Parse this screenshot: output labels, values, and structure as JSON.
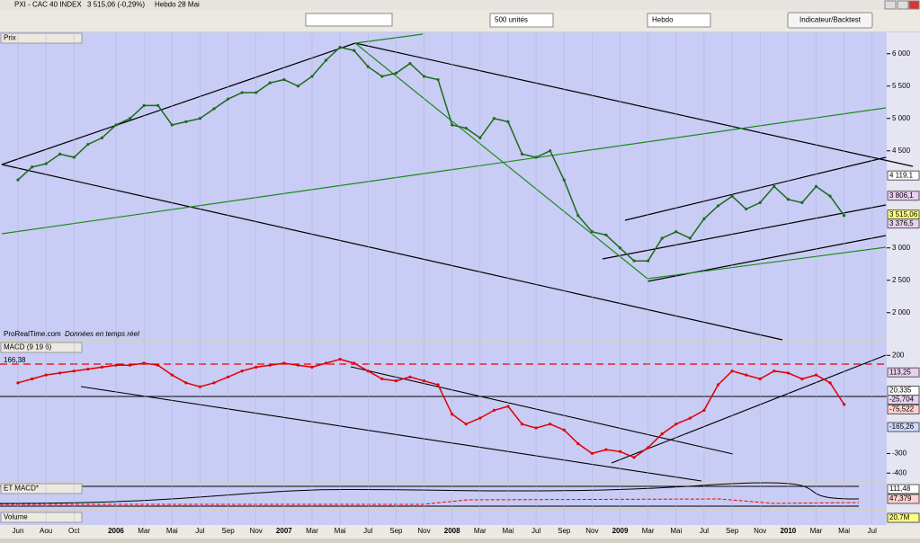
{
  "window": {
    "title": "PXI - CAC 40 INDEX",
    "quote": "3 515,06 (-0,29%)",
    "period": "Hebdo 28 Mai"
  },
  "toolbar": {
    "units": "500 unités",
    "timeframe": "Hebdo",
    "button": "Indicateur/Backtest"
  },
  "time_labels": [
    "Jun",
    "Aou",
    "Oct",
    "2006",
    "Mar",
    "Mai",
    "Jul",
    "Sep",
    "Nov",
    "2007",
    "Mar",
    "Mai",
    "Jul",
    "Sep",
    "Nov",
    "2008",
    "Mar",
    "Mai",
    "Jul",
    "Sep",
    "Nov",
    "2009",
    "Mar",
    "Mai",
    "Jul",
    "Sep",
    "Nov",
    "2010",
    "Mar",
    "Mai",
    "Jul"
  ],
  "price_panel": {
    "header": "Prix",
    "source": "ProRealTime.com",
    "note": "Données en temps réel",
    "color": "#1a6b1a",
    "ylim": [
      1580,
      6330
    ],
    "yticks": [
      {
        "value": 2000,
        "label": "2 000"
      },
      {
        "value": 2500,
        "label": "2 500"
      },
      {
        "value": 3000,
        "label": "3 000"
      },
      {
        "value": 4500,
        "label": "4 500"
      },
      {
        "value": 5000,
        "label": "5 000"
      },
      {
        "value": 5500,
        "label": "5 500"
      },
      {
        "value": 6000,
        "label": "6 000"
      }
    ],
    "markers": [
      {
        "value": 4119.1,
        "label": "4 119,1",
        "color": "#ffffff"
      },
      {
        "value": 3806.1,
        "label": "3 806,1",
        "color": "#e8d0f0"
      },
      {
        "value": 3515.06,
        "label": "3 515,06",
        "color": "#ffff80"
      },
      {
        "value": 3376.5,
        "label": "3 376,5",
        "color": "#e8d0f0"
      }
    ],
    "values": [
      4050,
      4250,
      4300,
      4450,
      4400,
      4600,
      4700,
      4900,
      5000,
      5200,
      5200,
      4900,
      4950,
      5000,
      5150,
      5300,
      5400,
      5400,
      5550,
      5600,
      5500,
      5650,
      5900,
      6100,
      6050,
      5800,
      5650,
      5700,
      5850,
      5650,
      5600,
      4900,
      4850,
      4700,
      5000,
      4950,
      4450,
      4400,
      4500,
      4050,
      3500,
      3250,
      3200,
      3000,
      2800,
      2800,
      3150,
      3250,
      3150,
      3450,
      3650,
      3800,
      3600,
      3700,
      3950,
      3750,
      3700,
      3950,
      3800,
      3500
    ]
  },
  "macd_panel": {
    "header": "MACD (9 19 6)",
    "level_label": "166,38",
    "color": "#e00000",
    "ylim": [
      -440,
      270
    ],
    "yticks": [
      200,
      -300,
      -400
    ],
    "markers": [
      {
        "value": 113.25,
        "label": "113,25",
        "color": "#e8d0f0"
      },
      {
        "value": 20.335,
        "label": "20,335",
        "color": "#ffffff"
      },
      {
        "value": -25.704,
        "label": "-25,704",
        "color": "#e8d0f0"
      },
      {
        "value": -75.522,
        "label": "-75,522",
        "color": "#ffd0d0"
      },
      {
        "value": -165.26,
        "label": "-165,26",
        "color": "#d0d8ff"
      }
    ],
    "values": [
      60,
      80,
      100,
      110,
      120,
      130,
      140,
      150,
      150,
      160,
      150,
      100,
      60,
      40,
      60,
      90,
      120,
      140,
      150,
      160,
      150,
      140,
      160,
      180,
      160,
      120,
      80,
      70,
      90,
      70,
      50,
      -100,
      -150,
      -120,
      -80,
      -60,
      -150,
      -170,
      -150,
      -180,
      -250,
      -300,
      -280,
      -290,
      -320,
      -270,
      -200,
      -150,
      -120,
      -80,
      50,
      120,
      100,
      80,
      120,
      110,
      80,
      100,
      60,
      -50
    ]
  },
  "etmacd_panel": {
    "header": "ET MACD*",
    "markers": [
      "111,48",
      "47,379"
    ]
  },
  "volume_panel": {
    "header": "Volume",
    "marker": "20,7M"
  }
}
